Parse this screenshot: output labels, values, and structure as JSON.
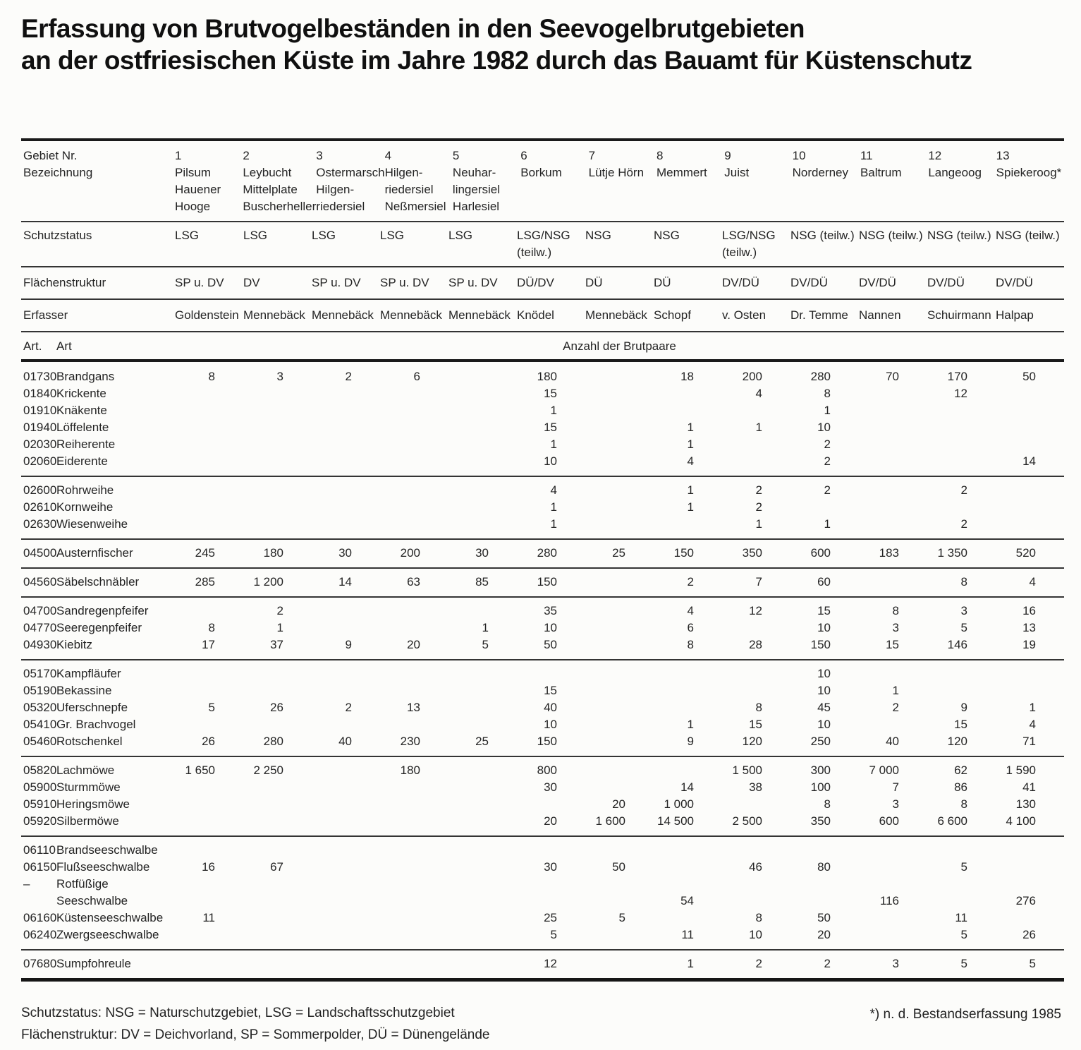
{
  "title": {
    "line1": "Erfassung von Brutvogelbeständen in den Seevogelbrutgebieten",
    "line2": "an der ostfriesischen Küste im Jahre 1982 durch das Bauamt für Küstenschutz"
  },
  "table": {
    "header": {
      "label": "Gebiet Nr.\nBezeichnung",
      "areas": [
        "1\nPilsum\nHauener\nHooge",
        "2\nLeybucht\nMittelplate\nBuscherheller",
        "3\nOstermarsch\nHilgen-\nriedersiel",
        "4\nHilgen-\nriedersiel\nNeßmersiel",
        "5\nNeuhar-\nlingersiel\nHarlesiel",
        "6\nBorkum",
        "7\nLütje Hörn",
        "8\nMemmert",
        "9\nJuist",
        "10\nNorderney",
        "11\nBaltrum",
        "12\nLangeoog",
        "13\nSpiekeroog*"
      ]
    },
    "meta": [
      {
        "id": "schutzstatus",
        "label": "Schutzstatus",
        "values": [
          "LSG",
          "LSG",
          "LSG",
          "LSG",
          "LSG",
          "LSG/NSG\n(teilw.)",
          "NSG",
          "NSG",
          "LSG/NSG\n(teilw.)",
          "NSG (teilw.)",
          "NSG (teilw.)",
          "NSG (teilw.)",
          "NSG (teilw.)"
        ]
      },
      {
        "id": "flaechenstruktur",
        "label": "Flächenstruktur",
        "values": [
          "SP u. DV",
          "DV",
          "SP u. DV",
          "SP u. DV",
          "SP u. DV",
          "DÜ/DV",
          "DÜ",
          "DÜ",
          "DV/DÜ",
          "DV/DÜ",
          "DV/DÜ",
          "DV/DÜ",
          "DV/DÜ"
        ]
      },
      {
        "id": "erfasser",
        "label": "Erfasser",
        "values": [
          "Goldenstein",
          "Mennebäck",
          "Mennebäck",
          "Mennebäck",
          "Mennebäck",
          "Knödel",
          "Mennebäck",
          "Schopf",
          "v. Osten",
          "Dr. Temme",
          "Nannen",
          "Schuirmann",
          "Halpap"
        ]
      }
    ],
    "art_label_nr": "Art.",
    "art_label_name": "Art",
    "unit_label": "Anzahl der Brutpaare",
    "groups": [
      {
        "rows": [
          {
            "nr": "01730",
            "name": "Brandgans",
            "values": [
              "8",
              "3",
              "2",
              "6",
              "",
              "180",
              "",
              "18",
              "200",
              "280",
              "70",
              "170",
              "50"
            ]
          },
          {
            "nr": "01840",
            "name": "Krickente",
            "values": [
              "",
              "",
              "",
              "",
              "",
              "15",
              "",
              "",
              "4",
              "8",
              "",
              "12",
              ""
            ]
          },
          {
            "nr": "01910",
            "name": "Knäkente",
            "values": [
              "",
              "",
              "",
              "",
              "",
              "1",
              "",
              "",
              "",
              "1",
              "",
              "",
              ""
            ]
          },
          {
            "nr": "01940",
            "name": "Löffelente",
            "values": [
              "",
              "",
              "",
              "",
              "",
              "15",
              "",
              "1",
              "1",
              "10",
              "",
              "",
              ""
            ]
          },
          {
            "nr": "02030",
            "name": "Reiherente",
            "values": [
              "",
              "",
              "",
              "",
              "",
              "1",
              "",
              "1",
              "",
              "2",
              "",
              "",
              ""
            ]
          },
          {
            "nr": "02060",
            "name": "Eiderente",
            "values": [
              "",
              "",
              "",
              "",
              "",
              "10",
              "",
              "4",
              "",
              "2",
              "",
              "",
              "14"
            ]
          }
        ]
      },
      {
        "rows": [
          {
            "nr": "02600",
            "name": "Rohrweihe",
            "values": [
              "",
              "",
              "",
              "",
              "",
              "4",
              "",
              "1",
              "2",
              "2",
              "",
              "2",
              ""
            ]
          },
          {
            "nr": "02610",
            "name": "Kornweihe",
            "values": [
              "",
              "",
              "",
              "",
              "",
              "1",
              "",
              "1",
              "2",
              "",
              "",
              "",
              ""
            ]
          },
          {
            "nr": "02630",
            "name": "Wiesenweihe",
            "values": [
              "",
              "",
              "",
              "",
              "",
              "1",
              "",
              "",
              "1",
              "1",
              "",
              "2",
              ""
            ]
          }
        ]
      },
      {
        "rows": [
          {
            "nr": "04500",
            "name": "Austernfischer",
            "values": [
              "245",
              "180",
              "30",
              "200",
              "30",
              "280",
              "25",
              "150",
              "350",
              "600",
              "183",
              "1 350",
              "520"
            ]
          }
        ]
      },
      {
        "rows": [
          {
            "nr": "04560",
            "name": "Säbelschnäbler",
            "values": [
              "285",
              "1 200",
              "14",
              "63",
              "85",
              "150",
              "",
              "2",
              "7",
              "60",
              "",
              "8",
              "4"
            ]
          }
        ]
      },
      {
        "rows": [
          {
            "nr": "04700",
            "name": "Sandregenpfeifer",
            "values": [
              "",
              "2",
              "",
              "",
              "",
              "35",
              "",
              "4",
              "12",
              "15",
              "8",
              "3",
              "16"
            ]
          },
          {
            "nr": "04770",
            "name": "Seeregenpfeifer",
            "values": [
              "8",
              "1",
              "",
              "",
              "1",
              "10",
              "",
              "6",
              "",
              "10",
              "3",
              "5",
              "13"
            ]
          },
          {
            "nr": "04930",
            "name": "Kiebitz",
            "values": [
              "17",
              "37",
              "9",
              "20",
              "5",
              "50",
              "",
              "8",
              "28",
              "150",
              "15",
              "146",
              "19"
            ]
          }
        ]
      },
      {
        "rows": [
          {
            "nr": "05170",
            "name": "Kampfläufer",
            "values": [
              "",
              "",
              "",
              "",
              "",
              "",
              "",
              "",
              "",
              "10",
              "",
              "",
              ""
            ]
          },
          {
            "nr": "05190",
            "name": "Bekassine",
            "values": [
              "",
              "",
              "",
              "",
              "",
              "15",
              "",
              "",
              "",
              "10",
              "1",
              "",
              ""
            ]
          },
          {
            "nr": "05320",
            "name": "Uferschnepfe",
            "values": [
              "5",
              "26",
              "2",
              "13",
              "",
              "40",
              "",
              "",
              "8",
              "45",
              "2",
              "9",
              "1"
            ]
          },
          {
            "nr": "05410",
            "name": "Gr. Brachvogel",
            "values": [
              "",
              "",
              "",
              "",
              "",
              "10",
              "",
              "1",
              "15",
              "10",
              "",
              "15",
              "4"
            ]
          },
          {
            "nr": "05460",
            "name": "Rotschenkel",
            "values": [
              "26",
              "280",
              "40",
              "230",
              "25",
              "150",
              "",
              "9",
              "120",
              "250",
              "40",
              "120",
              "71"
            ]
          }
        ]
      },
      {
        "rows": [
          {
            "nr": "05820",
            "name": "Lachmöwe",
            "values": [
              "1 650",
              "2 250",
              "",
              "180",
              "",
              "800",
              "",
              "",
              "1 500",
              "300",
              "7 000",
              "62",
              "1 590"
            ]
          },
          {
            "nr": "05900",
            "name": "Sturmmöwe",
            "values": [
              "",
              "",
              "",
              "",
              "",
              "30",
              "",
              "14",
              "38",
              "100",
              "7",
              "86",
              "41"
            ]
          },
          {
            "nr": "05910",
            "name": "Heringsmöwe",
            "values": [
              "",
              "",
              "",
              "",
              "",
              "",
              "20",
              "1 000",
              "",
              "8",
              "3",
              "8",
              "130"
            ]
          },
          {
            "nr": "05920",
            "name": "Silbermöwe",
            "values": [
              "",
              "",
              "",
              "",
              "",
              "20",
              "1 600",
              "14 500",
              "2 500",
              "350",
              "600",
              "6 600",
              "4 100"
            ]
          }
        ]
      },
      {
        "rows": [
          {
            "nr": "06110",
            "name": "Brandseeschwalbe",
            "values": [
              "",
              "",
              "",
              "",
              "",
              "",
              "",
              "",
              "",
              "",
              "",
              "",
              ""
            ]
          },
          {
            "nr": "06150",
            "name": "Flußseeschwalbe",
            "values": [
              "16",
              "67",
              "",
              "",
              "",
              "30",
              "50",
              "",
              "46",
              "80",
              "",
              "5",
              ""
            ]
          },
          {
            "nr": "–",
            "name": "Rotfüßige",
            "values": [
              "",
              "",
              "",
              "",
              "",
              "",
              "",
              "",
              "",
              "",
              "",
              "",
              ""
            ]
          },
          {
            "nr": "",
            "name": "Seeschwalbe",
            "values": [
              "",
              "",
              "",
              "",
              "",
              "",
              "",
              "54",
              "",
              "",
              "116",
              "",
              "276"
            ]
          },
          {
            "nr": "06160",
            "name": "Küstenseeschwalbe",
            "values": [
              "11",
              "",
              "",
              "",
              "",
              "25",
              "5",
              "",
              "8",
              "50",
              "",
              "11",
              ""
            ]
          },
          {
            "nr": "06240",
            "name": "Zwergseeschwalbe",
            "values": [
              "",
              "",
              "",
              "",
              "",
              "5",
              "",
              "11",
              "10",
              "20",
              "",
              "5",
              "26"
            ]
          }
        ]
      },
      {
        "rows": [
          {
            "nr": "07680",
            "name": "Sumpfohreule",
            "values": [
              "",
              "",
              "",
              "",
              "",
              "12",
              "",
              "1",
              "2",
              "2",
              "3",
              "5",
              "5"
            ]
          }
        ]
      }
    ]
  },
  "footnotes": {
    "line1": "Schutzstatus: NSG = Naturschutzgebiet, LSG = Landschaftsschutzgebiet",
    "line2": "Flächenstruktur: DV = Deichvorland, SP = Sommerpolder, DÜ = Dünengelände",
    "right": "*) n. d. Bestandserfassung 1985"
  }
}
